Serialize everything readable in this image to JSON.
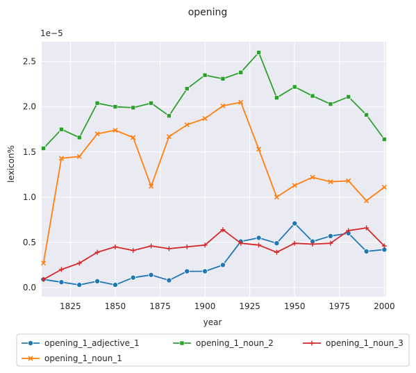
{
  "chart_data": {
    "type": "line",
    "title": "opening",
    "xlabel": "year",
    "ylabel": "lexicon%",
    "y_multiplier_label": "1e−5",
    "xlim": [
      1809,
      2001
    ],
    "ylim": [
      -0.1,
      2.72
    ],
    "x_ticks": [
      1825,
      1850,
      1875,
      1900,
      1925,
      1950,
      1975,
      2000
    ],
    "y_ticks": [
      0.0,
      0.5,
      1.0,
      1.5,
      2.0,
      2.5
    ],
    "y_tick_labels": [
      "0.0",
      "0.5",
      "1.0",
      "1.5",
      "2.0",
      "2.5"
    ],
    "grid": true,
    "legend_position": "bottom",
    "x": [
      1810,
      1820,
      1830,
      1840,
      1850,
      1860,
      1870,
      1880,
      1890,
      1900,
      1910,
      1920,
      1930,
      1940,
      1950,
      1960,
      1970,
      1980,
      1990,
      2000
    ],
    "series": [
      {
        "name": "opening_1_adjective_1",
        "color": "#1f77b4",
        "marker": "circle",
        "values": [
          0.09,
          0.06,
          0.03,
          0.07,
          0.03,
          0.11,
          0.14,
          0.08,
          0.18,
          0.18,
          0.25,
          0.51,
          0.55,
          0.49,
          0.71,
          0.51,
          0.57,
          0.6,
          0.4,
          0.42
        ]
      },
      {
        "name": "opening_1_noun_1",
        "color": "#ff7f0e",
        "marker": "x",
        "values": [
          0.27,
          1.43,
          1.45,
          1.7,
          1.74,
          1.66,
          1.12,
          1.67,
          1.8,
          1.87,
          2.01,
          2.05,
          1.53,
          1.0,
          1.13,
          1.22,
          1.17,
          1.18,
          0.96,
          1.11
        ]
      },
      {
        "name": "opening_1_noun_2",
        "color": "#2ca02c",
        "marker": "square",
        "values": [
          1.54,
          1.75,
          1.66,
          2.04,
          2.0,
          1.99,
          2.04,
          1.9,
          2.2,
          2.35,
          2.31,
          2.38,
          2.6,
          2.1,
          2.22,
          2.12,
          2.03,
          2.11,
          1.91,
          1.64
        ]
      },
      {
        "name": "opening_1_noun_3",
        "color": "#d62728",
        "marker": "plus",
        "values": [
          0.09,
          0.2,
          0.27,
          0.39,
          0.45,
          0.41,
          0.46,
          0.43,
          0.45,
          0.47,
          0.64,
          0.49,
          0.47,
          0.39,
          0.49,
          0.48,
          0.49,
          0.63,
          0.66,
          0.46
        ]
      }
    ]
  }
}
